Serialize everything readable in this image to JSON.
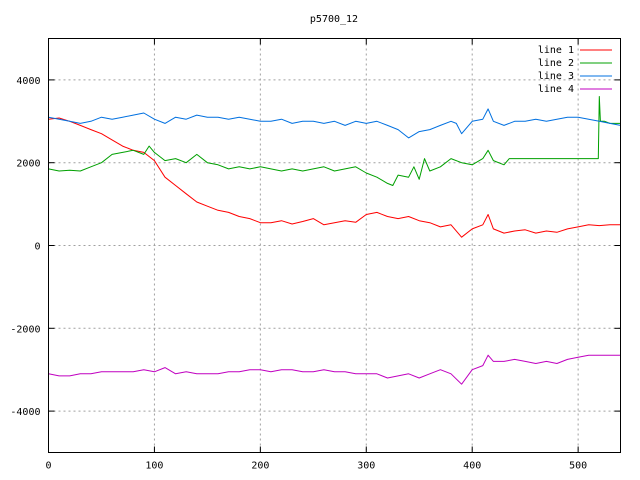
{
  "chart_data": {
    "type": "line",
    "title": "p5700_12",
    "xlabel": "",
    "ylabel": "",
    "xlim": [
      0,
      540
    ],
    "ylim": [
      -5000,
      5000
    ],
    "x_ticks": [
      0,
      100,
      200,
      300,
      400,
      500
    ],
    "y_ticks": [
      -4000,
      -2000,
      0,
      2000,
      4000
    ],
    "grid": true,
    "legend_position": "top-right",
    "series": [
      {
        "name": "line 1",
        "color": "#ff0000",
        "x": [
          0,
          10,
          20,
          30,
          40,
          50,
          60,
          70,
          80,
          90,
          100,
          110,
          120,
          130,
          140,
          150,
          160,
          170,
          180,
          190,
          200,
          210,
          220,
          230,
          240,
          250,
          260,
          270,
          280,
          290,
          300,
          310,
          320,
          330,
          340,
          350,
          360,
          370,
          380,
          390,
          400,
          410,
          415,
          420,
          430,
          440,
          450,
          460,
          470,
          480,
          490,
          500,
          510,
          520,
          530,
          540
        ],
        "y": [
          3050,
          3080,
          3000,
          2900,
          2800,
          2700,
          2550,
          2400,
          2300,
          2250,
          2050,
          1650,
          1450,
          1250,
          1050,
          950,
          850,
          800,
          700,
          650,
          550,
          550,
          600,
          520,
          580,
          650,
          500,
          550,
          600,
          560,
          750,
          800,
          700,
          650,
          700,
          600,
          550,
          450,
          500,
          200,
          400,
          500,
          750,
          400,
          300,
          350,
          380,
          300,
          350,
          320,
          400,
          450,
          500,
          480,
          500,
          500
        ]
      },
      {
        "name": "line 2",
        "color": "#00a000",
        "x": [
          0,
          10,
          20,
          30,
          40,
          50,
          60,
          70,
          80,
          90,
          95,
          100,
          110,
          120,
          130,
          140,
          150,
          160,
          170,
          180,
          190,
          200,
          210,
          220,
          230,
          240,
          250,
          260,
          270,
          280,
          290,
          300,
          310,
          320,
          325,
          330,
          340,
          345,
          350,
          355,
          360,
          370,
          380,
          390,
          400,
          410,
          415,
          420,
          430,
          435,
          440,
          450,
          460,
          470,
          480,
          490,
          500,
          510,
          519,
          520,
          521,
          525,
          530,
          540
        ],
        "y": [
          1850,
          1800,
          1820,
          1800,
          1900,
          2000,
          2200,
          2250,
          2300,
          2200,
          2400,
          2250,
          2050,
          2100,
          2000,
          2200,
          2000,
          1950,
          1850,
          1900,
          1850,
          1900,
          1850,
          1800,
          1850,
          1800,
          1850,
          1900,
          1800,
          1850,
          1900,
          1750,
          1650,
          1500,
          1450,
          1700,
          1650,
          1900,
          1600,
          2100,
          1800,
          1900,
          2100,
          2000,
          1950,
          2100,
          2300,
          2050,
          1950,
          2100,
          2100,
          2100,
          2100,
          2100,
          2100,
          2100,
          2100,
          2100,
          2100,
          3600,
          3000,
          3000,
          2950,
          2950
        ]
      },
      {
        "name": "line 3",
        "color": "#0070e0",
        "x": [
          0,
          10,
          20,
          30,
          40,
          50,
          60,
          70,
          80,
          90,
          100,
          110,
          120,
          130,
          140,
          150,
          160,
          170,
          180,
          190,
          200,
          210,
          220,
          230,
          240,
          250,
          260,
          270,
          280,
          290,
          300,
          310,
          320,
          330,
          340,
          350,
          360,
          370,
          380,
          385,
          390,
          400,
          410,
          415,
          420,
          430,
          440,
          450,
          460,
          470,
          480,
          490,
          500,
          510,
          520,
          530,
          540
        ],
        "y": [
          3100,
          3050,
          3000,
          2950,
          3000,
          3100,
          3050,
          3100,
          3150,
          3200,
          3050,
          2950,
          3100,
          3050,
          3150,
          3100,
          3100,
          3050,
          3100,
          3050,
          3000,
          3000,
          3050,
          2950,
          3000,
          3000,
          2950,
          3000,
          2900,
          3000,
          2950,
          3000,
          2900,
          2800,
          2600,
          2750,
          2800,
          2900,
          3000,
          2950,
          2700,
          3000,
          3050,
          3300,
          3000,
          2900,
          3000,
          3000,
          3050,
          3000,
          3050,
          3100,
          3100,
          3050,
          3000,
          2950,
          2900
        ]
      },
      {
        "name": "line 4",
        "color": "#c000c0",
        "x": [
          0,
          10,
          20,
          30,
          40,
          50,
          60,
          70,
          80,
          90,
          100,
          110,
          120,
          130,
          140,
          150,
          160,
          170,
          180,
          190,
          200,
          210,
          220,
          230,
          240,
          250,
          260,
          270,
          280,
          290,
          300,
          310,
          320,
          330,
          340,
          350,
          360,
          370,
          380,
          390,
          400,
          410,
          415,
          420,
          430,
          440,
          450,
          460,
          470,
          480,
          490,
          500,
          510,
          520,
          530,
          540
        ],
        "y": [
          -3100,
          -3150,
          -3150,
          -3100,
          -3100,
          -3050,
          -3050,
          -3050,
          -3050,
          -3000,
          -3050,
          -2950,
          -3100,
          -3050,
          -3100,
          -3100,
          -3100,
          -3050,
          -3050,
          -3000,
          -3000,
          -3050,
          -3000,
          -3000,
          -3050,
          -3050,
          -3000,
          -3050,
          -3050,
          -3100,
          -3100,
          -3100,
          -3200,
          -3150,
          -3100,
          -3200,
          -3100,
          -3000,
          -3100,
          -3350,
          -3000,
          -2900,
          -2650,
          -2800,
          -2800,
          -2750,
          -2800,
          -2850,
          -2800,
          -2850,
          -2750,
          -2700,
          -2650,
          -2650,
          -2650,
          -2650
        ]
      }
    ]
  }
}
